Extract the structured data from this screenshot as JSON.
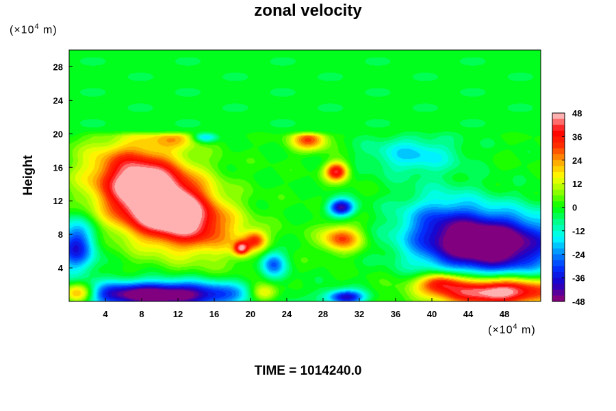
{
  "chart_data": {
    "type": "heatmap",
    "title": "zonal velocity",
    "ylabel": "Height",
    "xlabel": "",
    "y_unit": {
      "prefix": "(×10",
      "exp": "4",
      "suffix": " m)"
    },
    "x_unit": {
      "prefix": "(×10",
      "exp": "4",
      "suffix": " m)"
    },
    "xlim": [
      0,
      52
    ],
    "ylim": [
      0,
      30
    ],
    "x_ticks": [
      "4",
      "8",
      "12",
      "16",
      "20",
      "24",
      "28",
      "32",
      "36",
      "40",
      "44",
      "48"
    ],
    "y_ticks": [
      "4",
      "8",
      "12",
      "16",
      "20",
      "24",
      "28"
    ],
    "colorbar": {
      "range": [
        -48,
        48
      ],
      "tick_labels": [
        "48",
        "36",
        "24",
        "12",
        "0",
        "-12",
        "-24",
        "-36",
        "-48"
      ],
      "colors": [
        "#800080",
        "#1a00c8",
        "#0030ff",
        "#0090ff",
        "#00ffff",
        "#00ff90",
        "#00ff00",
        "#90ff00",
        "#ffff00",
        "#ffa500",
        "#ff3000",
        "#ff0000",
        "#ffb0b0"
      ]
    },
    "field": {
      "base_value": 0,
      "upper_layer": {
        "y_min": 20.5,
        "value": -2
      },
      "features": [
        {
          "x": 9.5,
          "y": 12.2,
          "sx": 4.6,
          "sy": 3.2,
          "angle": -30,
          "value": 58
        },
        {
          "x": 13.5,
          "y": 9.5,
          "sx": 4.5,
          "sy": 2.2,
          "angle": -20,
          "value": 20
        },
        {
          "x": 7.0,
          "y": 16.0,
          "sx": 3.5,
          "sy": 2.5,
          "angle": 0,
          "value": 12
        },
        {
          "x": 47.0,
          "y": 6.8,
          "sx": 5.0,
          "sy": 2.6,
          "angle": 0,
          "value": -55
        },
        {
          "x": 41.0,
          "y": 9.0,
          "sx": 3.5,
          "sy": 3.0,
          "angle": 0,
          "value": -22
        },
        {
          "x": 10.0,
          "y": 0.8,
          "sx": 6.5,
          "sy": 1.1,
          "angle": 0,
          "value": -55
        },
        {
          "x": 47.0,
          "y": 1.2,
          "sx": 5.0,
          "sy": 1.2,
          "angle": 0,
          "value": 55
        },
        {
          "x": 0.8,
          "y": 6.5,
          "sx": 1.5,
          "sy": 2.2,
          "angle": 0,
          "value": -35
        },
        {
          "x": 1.0,
          "y": 1.0,
          "sx": 1.4,
          "sy": 0.9,
          "angle": 0,
          "value": 40
        },
        {
          "x": 29.5,
          "y": 15.5,
          "sx": 0.9,
          "sy": 0.8,
          "angle": 0,
          "value": 40
        },
        {
          "x": 30.0,
          "y": 11.2,
          "sx": 1.0,
          "sy": 0.7,
          "angle": 0,
          "value": -42
        },
        {
          "x": 30.0,
          "y": 7.5,
          "sx": 1.6,
          "sy": 1.1,
          "angle": 0,
          "value": 30
        },
        {
          "x": 26.5,
          "y": 19.3,
          "sx": 1.4,
          "sy": 0.9,
          "angle": 0,
          "value": 30
        },
        {
          "x": 38.0,
          "y": 17.5,
          "sx": 3.5,
          "sy": 1.6,
          "angle": 0,
          "value": -18
        },
        {
          "x": 22.5,
          "y": 4.5,
          "sx": 1.0,
          "sy": 1.1,
          "angle": 0,
          "value": -28
        },
        {
          "x": 21.5,
          "y": 1.0,
          "sx": 1.2,
          "sy": 0.8,
          "angle": 0,
          "value": 28
        },
        {
          "x": 30.5,
          "y": 0.5,
          "sx": 1.5,
          "sy": 0.6,
          "angle": 0,
          "value": -40
        },
        {
          "x": 41.0,
          "y": 2.4,
          "sx": 1.6,
          "sy": 0.8,
          "angle": 0,
          "value": 28
        },
        {
          "x": 12.0,
          "y": 19.5,
          "sx": 2.5,
          "sy": 0.8,
          "angle": 0,
          "value": 16
        },
        {
          "x": 20.5,
          "y": 7.3,
          "sx": 0.9,
          "sy": 0.8,
          "angle": 0,
          "value": 28
        },
        {
          "x": 19.0,
          "y": 6.3,
          "sx": 0.6,
          "sy": 0.6,
          "angle": 0,
          "value": 35
        },
        {
          "x": 15.0,
          "y": 19.6,
          "sx": 1.0,
          "sy": 0.5,
          "angle": 0,
          "value": -25
        }
      ]
    }
  },
  "footer": {
    "time_label": "TIME = 1014240.0"
  }
}
